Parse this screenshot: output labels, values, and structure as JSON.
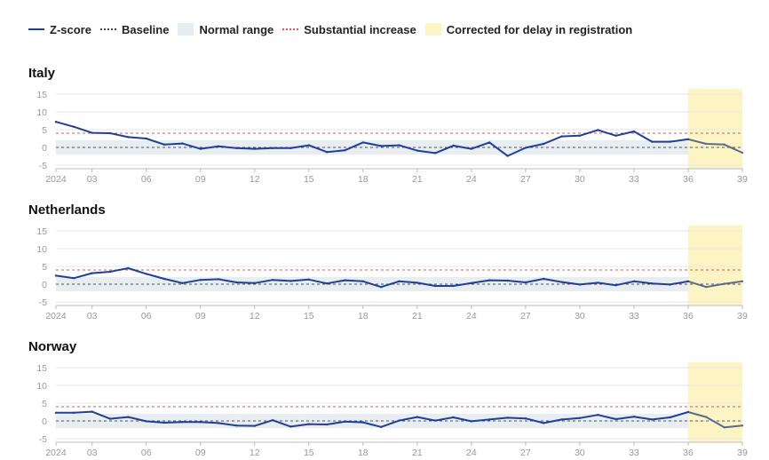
{
  "legend": {
    "zscore": "Z-score",
    "baseline": "Baseline",
    "normal_range": "Normal range",
    "substantial": "Substantial increase",
    "corrected": "Corrected for delay in registration"
  },
  "colors": {
    "zscore": "#1f3f99",
    "corrected_line": "#5a6b8c",
    "baseline": "#555555",
    "normal_range": "#e8edf2",
    "substantial": "#e05555",
    "corrected_band": "#fdf4c3",
    "grid": "#e6e6e6"
  },
  "chart_data": [
    {
      "type": "line",
      "title": "Italy",
      "y_ticks": [
        -5,
        0,
        5,
        10,
        15
      ],
      "ylim": [
        -6,
        16
      ],
      "x_range": [
        1,
        39
      ],
      "x_tick_labels": [
        {
          "week": 1,
          "label": "2024"
        },
        {
          "week": 3,
          "label": "03"
        },
        {
          "week": 6,
          "label": "06"
        },
        {
          "week": 9,
          "label": "09"
        },
        {
          "week": 12,
          "label": "12"
        },
        {
          "week": 15,
          "label": "15"
        },
        {
          "week": 18,
          "label": "18"
        },
        {
          "week": 21,
          "label": "21"
        },
        {
          "week": 24,
          "label": "24"
        },
        {
          "week": 27,
          "label": "27"
        },
        {
          "week": 30,
          "label": "30"
        },
        {
          "week": 33,
          "label": "33"
        },
        {
          "week": 36,
          "label": "36"
        },
        {
          "week": 39,
          "label": "39"
        }
      ],
      "baseline": 0,
      "normal_range": [
        -2,
        2
      ],
      "substantial_increase": 4,
      "corrected_from_week": 36,
      "weeks": [
        1,
        2,
        3,
        4,
        5,
        6,
        7,
        8,
        9,
        10,
        11,
        12,
        13,
        14,
        15,
        16,
        17,
        18,
        19,
        20,
        21,
        22,
        23,
        24,
        25,
        26,
        27,
        28,
        29,
        30,
        31,
        32,
        33,
        34,
        35,
        36,
        37,
        38,
        39
      ],
      "zscore": [
        7.2,
        5.8,
        4.1,
        4.0,
        2.9,
        2.5,
        0.8,
        1.1,
        -0.4,
        0.3,
        -0.2,
        -0.4,
        -0.2,
        -0.2,
        0.6,
        -1.3,
        -0.8,
        1.4,
        0.4,
        0.6,
        -0.9,
        -1.6,
        0.5,
        -0.4,
        1.4,
        -2.4,
        -0.1,
        1.0,
        3.1,
        3.3,
        4.9,
        3.3,
        4.5,
        1.6,
        1.6,
        2.3,
        1.0,
        0.8,
        -1.5
      ]
    },
    {
      "type": "line",
      "title": "Netherlands",
      "y_ticks": [
        -5,
        0,
        5,
        10,
        15
      ],
      "ylim": [
        -6,
        16
      ],
      "x_range": [
        1,
        39
      ],
      "x_tick_labels": [
        {
          "week": 1,
          "label": "2024"
        },
        {
          "week": 3,
          "label": "03"
        },
        {
          "week": 6,
          "label": "06"
        },
        {
          "week": 9,
          "label": "09"
        },
        {
          "week": 12,
          "label": "12"
        },
        {
          "week": 15,
          "label": "15"
        },
        {
          "week": 18,
          "label": "18"
        },
        {
          "week": 21,
          "label": "21"
        },
        {
          "week": 24,
          "label": "24"
        },
        {
          "week": 27,
          "label": "27"
        },
        {
          "week": 30,
          "label": "30"
        },
        {
          "week": 33,
          "label": "33"
        },
        {
          "week": 36,
          "label": "36"
        },
        {
          "week": 39,
          "label": "39"
        }
      ],
      "baseline": 0,
      "normal_range": [
        -2,
        2
      ],
      "substantial_increase": 4,
      "corrected_from_week": 36,
      "weeks": [
        1,
        2,
        3,
        4,
        5,
        6,
        7,
        8,
        9,
        10,
        11,
        12,
        13,
        14,
        15,
        16,
        17,
        18,
        19,
        20,
        21,
        22,
        23,
        24,
        25,
        26,
        27,
        28,
        29,
        30,
        31,
        32,
        33,
        34,
        35,
        36,
        37,
        38,
        39
      ],
      "zscore": [
        2.4,
        1.7,
        3.1,
        3.5,
        4.5,
        2.9,
        1.5,
        0.3,
        1.2,
        1.4,
        0.5,
        0.3,
        1.2,
        0.9,
        1.3,
        0.2,
        1.1,
        0.8,
        -0.8,
        0.8,
        0.4,
        -0.5,
        -0.5,
        0.3,
        1.1,
        1.0,
        0.5,
        1.5,
        0.6,
        -0.1,
        0.4,
        -0.3,
        0.8,
        0.2,
        -0.1,
        0.8,
        -0.8,
        0.1,
        0.8
      ]
    },
    {
      "type": "line",
      "title": "Norway",
      "y_ticks": [
        -5,
        0,
        5,
        10,
        15
      ],
      "ylim": [
        -6,
        16
      ],
      "x_range": [
        1,
        39
      ],
      "x_tick_labels": [
        {
          "week": 1,
          "label": "2024"
        },
        {
          "week": 3,
          "label": "03"
        },
        {
          "week": 6,
          "label": "06"
        },
        {
          "week": 9,
          "label": "09"
        },
        {
          "week": 12,
          "label": "12"
        },
        {
          "week": 15,
          "label": "15"
        },
        {
          "week": 18,
          "label": "18"
        },
        {
          "week": 21,
          "label": "21"
        },
        {
          "week": 24,
          "label": "24"
        },
        {
          "week": 27,
          "label": "27"
        },
        {
          "week": 30,
          "label": "30"
        },
        {
          "week": 33,
          "label": "33"
        },
        {
          "week": 36,
          "label": "36"
        },
        {
          "week": 39,
          "label": "39"
        }
      ],
      "baseline": 0,
      "normal_range": [
        -2,
        2
      ],
      "substantial_increase": 4,
      "corrected_from_week": 36,
      "weeks": [
        1,
        2,
        3,
        4,
        5,
        6,
        7,
        8,
        9,
        10,
        11,
        12,
        13,
        14,
        15,
        16,
        17,
        18,
        19,
        20,
        21,
        22,
        23,
        24,
        25,
        26,
        27,
        28,
        29,
        30,
        31,
        32,
        33,
        34,
        35,
        36,
        37,
        38,
        39
      ],
      "zscore": [
        2.3,
        2.3,
        2.6,
        0.6,
        1.1,
        -0.1,
        -0.5,
        -0.3,
        -0.3,
        -0.6,
        -1.3,
        -1.4,
        0.2,
        -1.6,
        -0.9,
        -1.0,
        -0.2,
        -0.4,
        -1.7,
        0.1,
        1.1,
        0.1,
        1.0,
        -0.1,
        0.4,
        0.9,
        0.7,
        -0.6,
        0.4,
        0.8,
        1.7,
        0.5,
        1.2,
        0.4,
        1.0,
        2.5,
        1.1,
        -1.8,
        -1.3
      ]
    }
  ]
}
